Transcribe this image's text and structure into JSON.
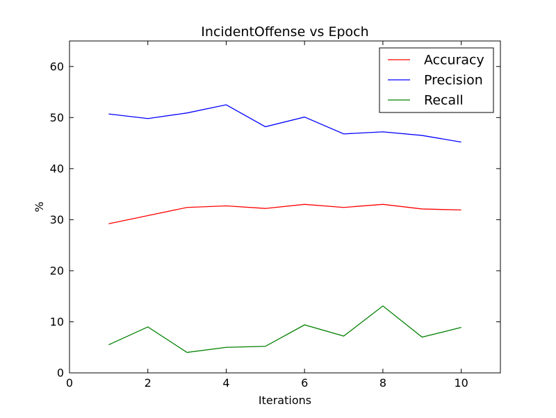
{
  "chart_data": {
    "type": "line",
    "title": "IncidentOffense vs Epoch",
    "xlabel": "Iterations",
    "ylabel": "%",
    "xlim": [
      0,
      11
    ],
    "ylim": [
      0,
      65
    ],
    "xticks": [
      0,
      2,
      4,
      6,
      8,
      10
    ],
    "yticks": [
      0,
      10,
      20,
      30,
      40,
      50,
      60
    ],
    "grid": false,
    "legend_position": "top-right",
    "x": [
      1,
      2,
      3,
      4,
      5,
      6,
      7,
      8,
      9,
      10
    ],
    "series": [
      {
        "name": "Accuracy",
        "color": "#ff0000",
        "values": [
          29.2,
          30.8,
          32.4,
          32.7,
          32.2,
          33.0,
          32.4,
          33.0,
          32.1,
          31.9
        ]
      },
      {
        "name": "Precision",
        "color": "#0000ff",
        "values": [
          50.7,
          49.8,
          50.9,
          52.5,
          48.2,
          50.1,
          46.8,
          47.2,
          46.5,
          45.2
        ]
      },
      {
        "name": "Recall",
        "color": "#008000",
        "values": [
          5.5,
          9.0,
          4.0,
          5.0,
          5.2,
          9.4,
          7.2,
          13.1,
          7.0,
          8.9
        ]
      }
    ]
  }
}
